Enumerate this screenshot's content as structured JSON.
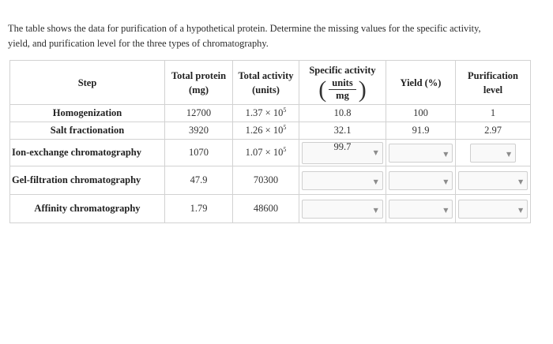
{
  "question": {
    "line1": "The table shows the data for purification of a hypothetical protein. Determine the missing values for the specific activity,",
    "line2": "yield, and purification level for the three types of chromatography."
  },
  "table": {
    "headers": {
      "step": "Step",
      "total_protein": "Total protein",
      "total_protein_unit": "(mg)",
      "total_activity": "Total activity",
      "total_activity_unit": "(units)",
      "specific_activity": "Specific activity",
      "specific_activity_num": "units",
      "specific_activity_den": "mg",
      "yield": "Yield (%)",
      "purification": "Purification",
      "purification_sub": "level"
    },
    "rows": [
      {
        "step": "Homogenization",
        "protein": "12700",
        "activity_base": "1.37 × 10",
        "activity_exp": "5",
        "specific": "10.8",
        "yield": "100",
        "purification": "1"
      },
      {
        "step": "Salt fractionation",
        "protein": "3920",
        "activity_base": "1.26 × 10",
        "activity_exp": "5",
        "specific": "32.1",
        "yield": "91.9",
        "purification": "2.97"
      },
      {
        "step": "Ion-exchange chromatography",
        "protein": "1070",
        "activity_base": "1.07 × 10",
        "activity_exp": "5",
        "specific": "99.7"
      },
      {
        "step": "Gel-filtration chromatography",
        "protein": "47.9",
        "activity": "70300"
      },
      {
        "step": "Affinity chromatography",
        "protein": "1.79",
        "activity": "48600"
      }
    ]
  },
  "icons": {
    "dropdown_arrow": "▼"
  }
}
